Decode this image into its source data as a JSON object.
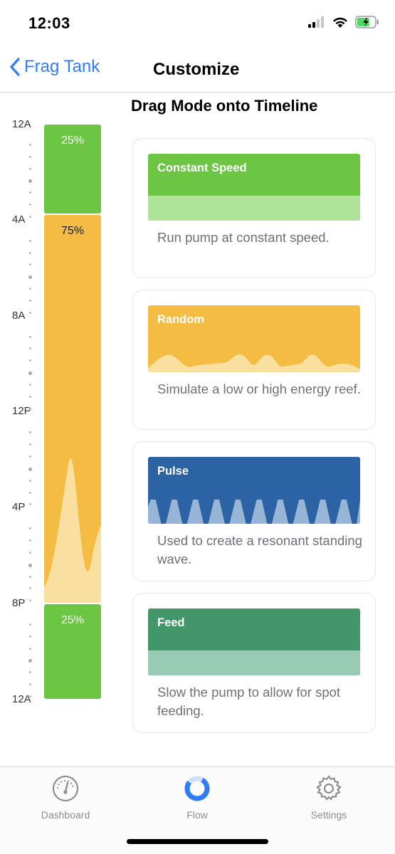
{
  "status": {
    "time": "12:03",
    "battery_level": 0.7
  },
  "nav": {
    "back_label": "Frag Tank",
    "title": "Customize"
  },
  "section_title": "Drag Mode onto Timeline",
  "timeline": {
    "labels": [
      "12A",
      "4A",
      "8A",
      "12P",
      "4P",
      "8P",
      "12A"
    ],
    "segments": [
      {
        "label": "25%",
        "mode": "Constant Speed",
        "color": "#6cc644"
      },
      {
        "label": "75%",
        "mode": "Random",
        "color": "#f4bc43"
      },
      {
        "label": "25%",
        "mode": "Constant Speed",
        "color": "#6cc644"
      }
    ]
  },
  "modes": [
    {
      "title": "Constant Speed",
      "description": "Run pump at constant speed.",
      "color": "#6cc644",
      "accent": "#b0e39a"
    },
    {
      "title": "Random",
      "description": "Simulate a low or high energy reef.",
      "color": "#f4bc43",
      "accent": "#f9e0a0"
    },
    {
      "title": "Pulse",
      "description": "Used to create a resonant standing wave.",
      "color": "#2b63a5",
      "accent": "#98b4d6"
    },
    {
      "title": "Feed",
      "description": "Slow the pump to allow for spot feeding.",
      "color": "#43956a",
      "accent": "#98cbb3"
    }
  ],
  "tabs": [
    {
      "label": "Dashboard",
      "icon": "gauge-icon",
      "active": false
    },
    {
      "label": "Flow",
      "icon": "flow-ring-icon",
      "active": true
    },
    {
      "label": "Settings",
      "icon": "gear-icon",
      "active": false
    }
  ],
  "colors": {
    "accent": "#2f7cf6"
  }
}
